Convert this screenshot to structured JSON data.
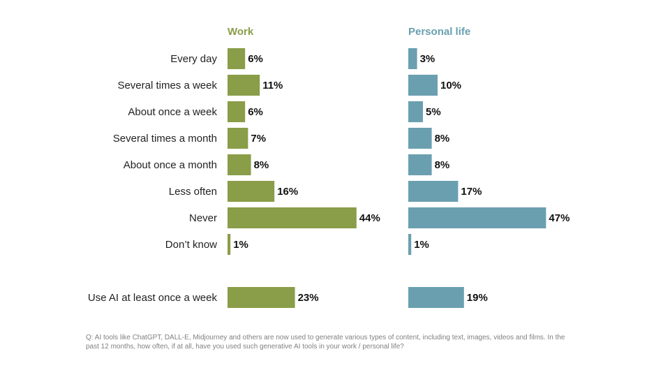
{
  "chart_data": {
    "type": "bar",
    "orientation": "horizontal",
    "categories": [
      "Every day",
      "Several times a week",
      "About once a week",
      "Several times a month",
      "About once a month",
      "Less often",
      "Never",
      "Don’t know"
    ],
    "summary_category": "Use AI at least once a week",
    "series": [
      {
        "name": "Work",
        "color": "#8a9d48",
        "values": [
          6,
          11,
          6,
          7,
          8,
          16,
          44,
          1
        ],
        "summary_value": 23
      },
      {
        "name": "Personal life",
        "color": "#6a9fb0",
        "values": [
          3,
          10,
          5,
          8,
          8,
          17,
          47,
          1
        ],
        "summary_value": 19
      }
    ],
    "value_suffix": "%",
    "xlim": [
      0,
      100
    ]
  },
  "footnote": "Q: AI tools like ChatGPT, DALL-E, Midjourney and others are now used to generate various types of content, including text, images, videos and films. In the past 12 months, how often, if at all, have you used such generative AI tools in your work / personal life?"
}
